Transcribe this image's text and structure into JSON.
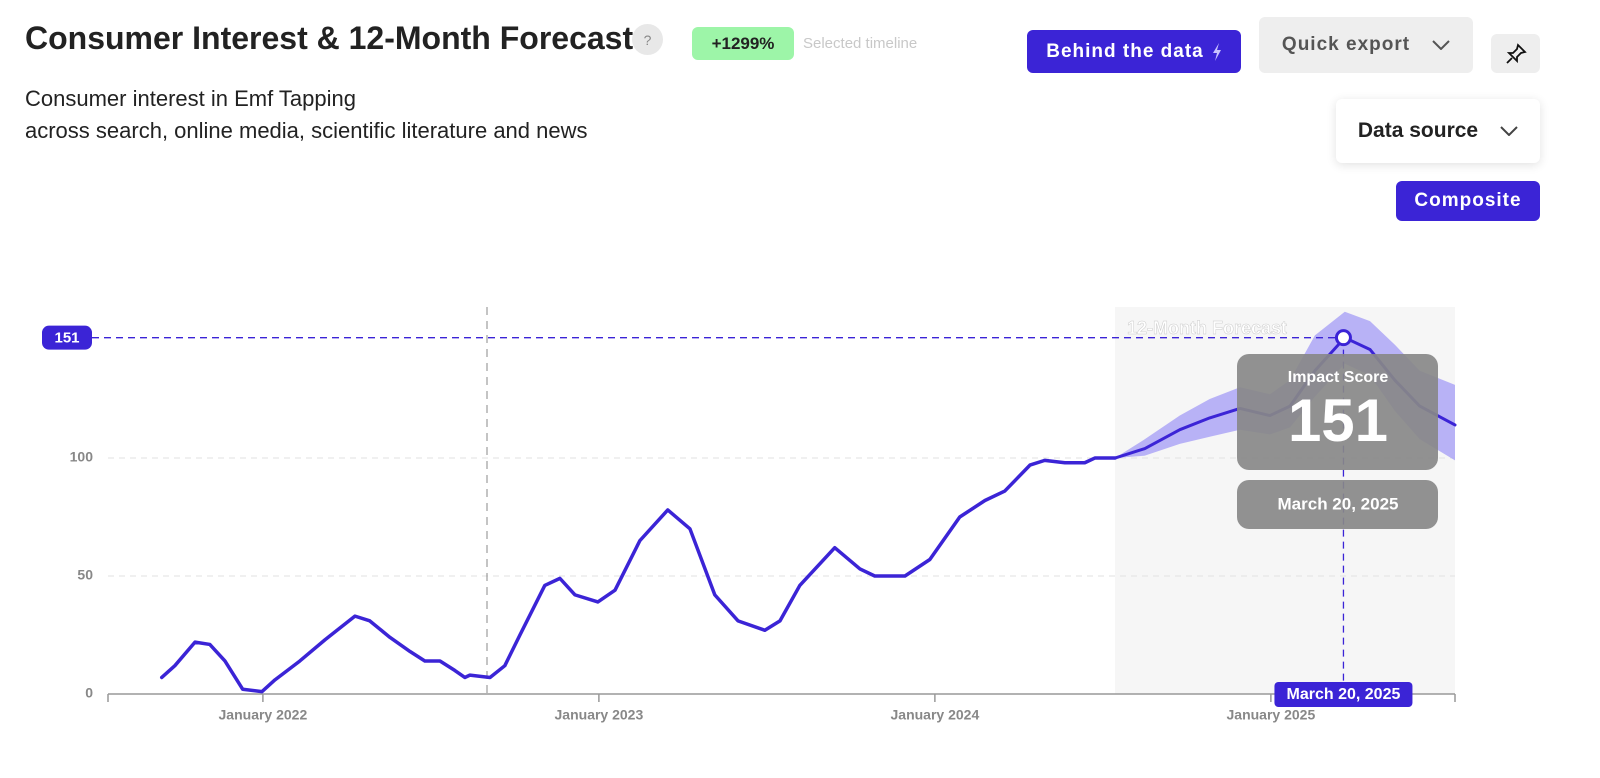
{
  "header": {
    "title": "Consumer Interest & 12-Month Forecast",
    "help": "?",
    "change": "+1299%",
    "change_note": "Selected timeline",
    "subtitle": [
      "Consumer interest in Emf Tapping",
      "across search, online media, scientific literature and news"
    ]
  },
  "buttons": {
    "behind": "Behind the data",
    "export": "Quick export",
    "source": "Data source",
    "composite": "Composite"
  },
  "chart_data": {
    "type": "line",
    "annotation": "12-Month Forecast",
    "xlim": [
      2021.539,
      2025.548
    ],
    "ylim": [
      0,
      164
    ],
    "xticks": [
      {
        "value": 2022,
        "label": "January 2022"
      },
      {
        "value": 2023,
        "label": "January 2023"
      },
      {
        "value": 2024,
        "label": "January 2024"
      },
      {
        "value": 2025,
        "label": "January 2025"
      }
    ],
    "yticks": [
      0,
      50,
      100
    ],
    "grid": true,
    "timeline_start": 2022.667,
    "series": [
      {
        "color": "#3b24d6",
        "x": [
          2021.699,
          2021.738,
          2021.798,
          2021.842,
          2021.887,
          2021.94,
          2021.997,
          2022.036,
          2022.11,
          2022.185,
          2022.274,
          2022.318,
          2022.378,
          2022.438,
          2022.482,
          2022.527,
          2022.571,
          2022.601,
          2022.616,
          2022.676,
          2022.72,
          2022.765,
          2022.839,
          2022.884,
          2022.929,
          2022.997,
          2023.048,
          2023.122,
          2023.205,
          2023.271,
          2023.345,
          2023.414,
          2023.494,
          2023.539,
          2023.598,
          2023.702,
          2023.777,
          2023.821,
          2023.911,
          2023.985,
          2024.074,
          2024.149,
          2024.208,
          2024.283,
          2024.327,
          2024.387,
          2024.446,
          2024.476,
          2024.536
        ],
        "values": [
          7,
          12,
          22,
          21,
          14,
          2,
          1,
          6,
          14,
          23,
          33,
          31,
          24,
          18,
          14,
          14,
          10,
          7,
          8,
          7,
          12,
          25,
          46,
          49,
          42,
          39,
          44,
          65,
          78,
          70,
          42,
          31,
          27,
          31,
          46,
          62,
          53,
          50,
          50,
          57,
          75,
          82,
          86,
          97,
          99,
          98,
          98,
          100,
          100
        ]
      },
      {
        "color": "#3b24d6",
        "band_color": "#a9a1f6",
        "x": [
          2024.536,
          2024.625,
          2024.729,
          2024.818,
          2024.908,
          2024.997,
          2025.057,
          2025.131,
          2025.22,
          2025.295,
          2025.369,
          2025.443,
          2025.548
        ],
        "values": [
          100,
          104,
          112,
          117,
          121,
          118,
          122,
          137,
          151,
          146,
          133,
          122,
          114
        ],
        "upper": [
          100,
          108,
          118,
          125,
          130,
          127,
          133,
          152,
          162,
          158,
          148,
          137,
          131
        ],
        "lower": [
          100,
          101,
          106,
          109,
          112,
          110,
          113,
          126,
          140,
          135,
          120,
          108,
          99
        ]
      }
    ],
    "highlight": {
      "x": 2025.216,
      "value": 151,
      "label": "March 20, 2025",
      "title": "Impact Score"
    }
  }
}
